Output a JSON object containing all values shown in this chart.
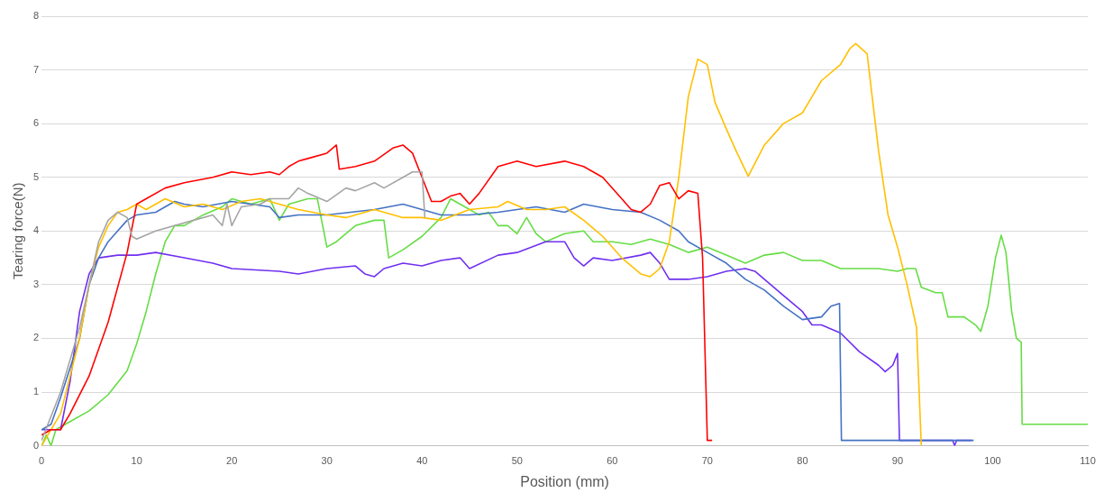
{
  "chart_data": {
    "type": "line",
    "xlabel": "Position (mm)",
    "ylabel": "Tearing force(N)",
    "xlim": [
      0,
      110
    ],
    "xticks": [
      0,
      10,
      20,
      30,
      40,
      50,
      60,
      70,
      80,
      90,
      100,
      110
    ],
    "ylim": [
      0,
      8
    ],
    "yticks": [
      0,
      1,
      2,
      3,
      4,
      5,
      6,
      7,
      8
    ],
    "grid": "y",
    "legend": false,
    "marker": "none",
    "line_style": "solid",
    "series": [
      {
        "color": "#a5a5a5",
        "x": [
          0,
          2,
          4,
          5,
          6,
          7,
          8,
          9,
          9.5,
          10,
          12,
          14,
          16,
          18,
          19,
          19.5,
          20,
          21,
          23,
          24,
          26,
          27,
          28,
          30,
          32,
          33,
          35,
          36,
          38,
          39,
          40,
          40.3
        ],
        "values": [
          0.1,
          1.0,
          2.2,
          3.0,
          3.8,
          4.2,
          4.35,
          4.25,
          3.9,
          3.85,
          4.0,
          4.1,
          4.2,
          4.3,
          4.1,
          4.5,
          4.1,
          4.45,
          4.5,
          4.6,
          4.6,
          4.8,
          4.7,
          4.55,
          4.8,
          4.75,
          4.9,
          4.8,
          5.0,
          5.1,
          5.1,
          4.25
        ]
      },
      {
        "color": "#ff0000",
        "x": [
          0,
          1,
          2,
          3,
          5,
          7,
          9,
          10,
          11,
          13,
          15,
          18,
          20,
          22,
          24,
          25,
          26,
          27,
          28,
          30,
          31,
          31.3,
          33,
          35,
          37,
          38,
          39,
          40,
          41,
          42,
          43,
          44,
          45,
          46,
          48,
          50,
          52,
          55,
          57,
          59,
          61,
          62,
          63,
          64,
          65,
          66,
          67,
          68,
          69,
          69.5,
          70,
          70.5
        ],
        "values": [
          0.2,
          0.3,
          0.3,
          0.6,
          1.3,
          2.3,
          3.6,
          4.5,
          4.6,
          4.8,
          4.9,
          5.0,
          5.1,
          5.05,
          5.1,
          5.05,
          5.2,
          5.3,
          5.35,
          5.45,
          5.6,
          5.15,
          5.2,
          5.3,
          5.55,
          5.6,
          5.45,
          5.0,
          4.55,
          4.55,
          4.65,
          4.7,
          4.5,
          4.7,
          5.2,
          5.3,
          5.2,
          5.3,
          5.2,
          5.0,
          4.6,
          4.4,
          4.35,
          4.5,
          4.85,
          4.9,
          4.6,
          4.75,
          4.7,
          3.5,
          0.1,
          0.1
        ]
      },
      {
        "color": "#ffc000",
        "x": [
          0,
          2,
          4,
          5,
          6,
          7,
          8,
          9,
          10,
          11,
          13,
          15,
          17,
          19,
          21,
          23,
          25,
          27,
          30,
          32,
          35,
          38,
          40,
          42,
          45,
          48,
          49,
          51,
          53,
          55,
          57,
          59,
          61,
          63,
          64,
          65,
          66,
          67,
          68,
          69,
          70,
          70.8,
          72,
          73,
          74.3,
          76,
          78,
          80,
          81,
          82,
          84,
          85,
          85.6,
          86.8,
          88,
          89,
          90,
          91,
          92,
          92.5
        ],
        "values": [
          0,
          0.6,
          2.0,
          3.0,
          3.7,
          4.1,
          4.35,
          4.4,
          4.5,
          4.4,
          4.6,
          4.45,
          4.5,
          4.4,
          4.55,
          4.6,
          4.5,
          4.4,
          4.3,
          4.25,
          4.4,
          4.25,
          4.25,
          4.2,
          4.4,
          4.45,
          4.55,
          4.4,
          4.4,
          4.45,
          4.2,
          3.9,
          3.5,
          3.2,
          3.15,
          3.3,
          3.8,
          5.0,
          6.5,
          7.2,
          7.1,
          6.4,
          5.9,
          5.5,
          5.02,
          5.6,
          6.0,
          6.2,
          6.5,
          6.8,
          7.1,
          7.4,
          7.49,
          7.3,
          5.5,
          4.3,
          3.7,
          3.0,
          2.2,
          0
        ]
      },
      {
        "color": "#4472c4",
        "x": [
          0,
          1,
          2,
          4,
          5,
          6,
          7,
          8,
          9,
          10,
          12,
          14,
          15,
          17,
          20,
          22,
          24,
          25,
          27,
          30,
          35,
          38,
          40,
          42,
          45,
          48,
          52,
          55,
          57,
          60,
          63,
          65,
          67,
          68,
          70,
          72,
          74,
          76,
          78,
          80,
          82,
          83,
          83.9,
          84.1,
          90,
          95,
          98
        ],
        "values": [
          0.3,
          0.4,
          0.9,
          2.0,
          3.0,
          3.5,
          3.8,
          4.0,
          4.2,
          4.3,
          4.35,
          4.55,
          4.5,
          4.45,
          4.55,
          4.5,
          4.45,
          4.25,
          4.3,
          4.3,
          4.4,
          4.5,
          4.4,
          4.3,
          4.3,
          4.35,
          4.45,
          4.35,
          4.5,
          4.4,
          4.35,
          4.2,
          4.0,
          3.8,
          3.6,
          3.4,
          3.1,
          2.9,
          2.6,
          2.35,
          2.4,
          2.6,
          2.65,
          0.1,
          0.1,
          0.1,
          0.1
        ]
      },
      {
        "color": "#7030f0",
        "x": [
          0,
          1,
          2,
          3,
          4,
          5,
          6,
          8,
          10,
          12,
          15,
          18,
          20,
          25,
          27,
          30,
          33,
          34,
          35,
          36,
          38,
          40,
          42,
          44,
          45,
          48,
          50,
          53,
          55,
          56,
          57,
          58,
          60,
          63,
          64,
          65,
          66,
          68,
          70,
          72,
          74,
          75,
          76,
          78,
          80,
          81,
          82,
          84,
          86,
          88,
          88.7,
          89.5,
          90,
          90.2,
          93,
          95.8,
          96,
          96.2,
          97.8
        ],
        "values": [
          0.3,
          0.3,
          0.3,
          1.2,
          2.5,
          3.2,
          3.5,
          3.55,
          3.55,
          3.6,
          3.5,
          3.4,
          3.3,
          3.25,
          3.2,
          3.3,
          3.35,
          3.2,
          3.15,
          3.3,
          3.4,
          3.35,
          3.45,
          3.5,
          3.3,
          3.55,
          3.6,
          3.8,
          3.8,
          3.5,
          3.35,
          3.5,
          3.45,
          3.55,
          3.6,
          3.4,
          3.1,
          3.1,
          3.15,
          3.25,
          3.3,
          3.25,
          3.1,
          2.8,
          2.5,
          2.25,
          2.25,
          2.1,
          1.75,
          1.5,
          1.38,
          1.5,
          1.72,
          0.1,
          0.1,
          0.1,
          0,
          0.1,
          0.1
        ]
      },
      {
        "color": "#66dd44",
        "x": [
          0,
          0.5,
          1,
          1.5,
          3,
          5,
          7,
          9,
          10,
          11,
          12,
          13,
          14,
          15,
          17,
          19,
          20,
          22,
          24,
          25,
          26,
          28,
          29,
          30,
          31,
          33,
          35,
          36,
          36.5,
          38,
          40,
          42,
          43,
          44,
          46,
          47,
          48,
          49,
          50,
          51,
          52,
          53,
          55,
          57,
          58,
          60,
          62,
          64,
          66,
          68,
          70,
          72,
          74,
          76,
          78,
          80,
          82,
          84,
          86,
          88,
          90,
          91,
          91.9,
          92.5,
          94,
          94.7,
          95.3,
          97,
          98.2,
          98.75,
          99.5,
          100.3,
          100.9,
          101.4,
          102,
          102.5,
          103,
          103.1,
          106,
          110
        ],
        "values": [
          0,
          0.2,
          0,
          0.3,
          0.45,
          0.65,
          0.95,
          1.4,
          1.9,
          2.5,
          3.2,
          3.8,
          4.1,
          4.1,
          4.3,
          4.45,
          4.6,
          4.5,
          4.6,
          4.2,
          4.5,
          4.6,
          4.6,
          3.7,
          3.8,
          4.1,
          4.2,
          4.2,
          3.5,
          3.65,
          3.9,
          4.25,
          4.6,
          4.5,
          4.3,
          4.35,
          4.1,
          4.1,
          3.95,
          4.25,
          3.95,
          3.8,
          3.95,
          4.0,
          3.8,
          3.8,
          3.75,
          3.85,
          3.75,
          3.6,
          3.7,
          3.55,
          3.4,
          3.55,
          3.6,
          3.45,
          3.45,
          3.3,
          3.3,
          3.3,
          3.25,
          3.3,
          3.3,
          2.95,
          2.85,
          2.85,
          2.4,
          2.4,
          2.25,
          2.13,
          2.6,
          3.5,
          3.92,
          3.6,
          2.5,
          2.0,
          1.93,
          0.4,
          0.4,
          0.4
        ]
      }
    ]
  }
}
